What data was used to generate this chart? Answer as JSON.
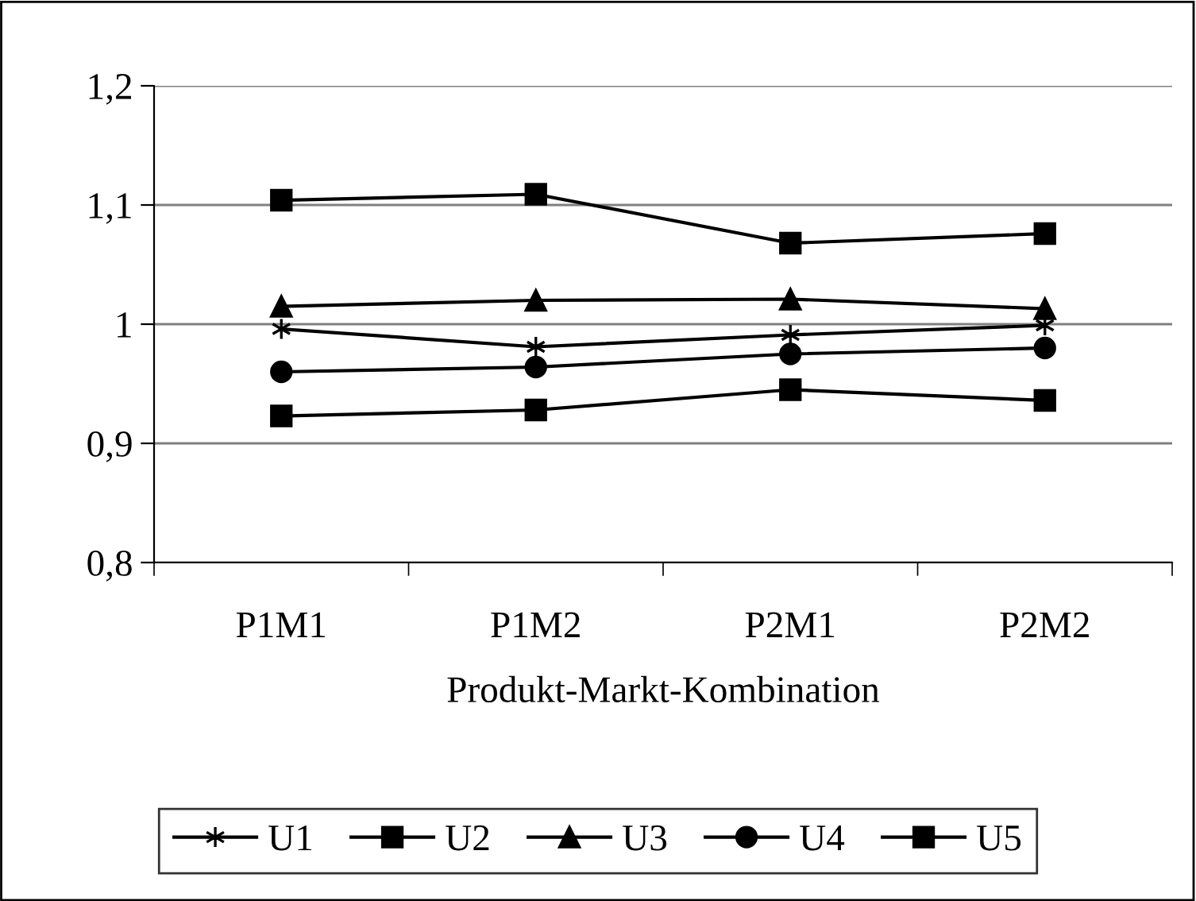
{
  "chart_data": {
    "type": "line",
    "xlabel": "Produkt-Markt-Kombination",
    "categories": [
      "P1M1",
      "P1M2",
      "P2M1",
      "P2M2"
    ],
    "series": [
      {
        "name": "U1",
        "color": "#000000",
        "marker": "cross",
        "values": [
          0.996,
          0.981,
          0.991,
          0.999
        ]
      },
      {
        "name": "U2",
        "color": "#000000",
        "marker": "square",
        "values": [
          0.923,
          0.928,
          0.945,
          0.936
        ]
      },
      {
        "name": "U3",
        "color": "#000000",
        "marker": "triangle",
        "values": [
          1.015,
          1.02,
          1.021,
          1.013
        ]
      },
      {
        "name": "U4",
        "color": "#000000",
        "marker": "circle",
        "values": [
          0.96,
          0.964,
          0.975,
          0.98
        ]
      },
      {
        "name": "U5",
        "color": "#000000",
        "marker": "square",
        "values": [
          1.104,
          1.109,
          1.068,
          1.076
        ]
      }
    ],
    "ylim": [
      0.8,
      1.2
    ],
    "yticks": [
      {
        "value": 0.8,
        "label": "0,8"
      },
      {
        "value": 0.9,
        "label": "0,9"
      },
      {
        "value": 1.0,
        "label": "1"
      },
      {
        "value": 1.1,
        "label": "1,1"
      },
      {
        "value": 1.2,
        "label": "1,2"
      }
    ],
    "grid": "y",
    "legend": "bottom",
    "line_style": "solid"
  }
}
